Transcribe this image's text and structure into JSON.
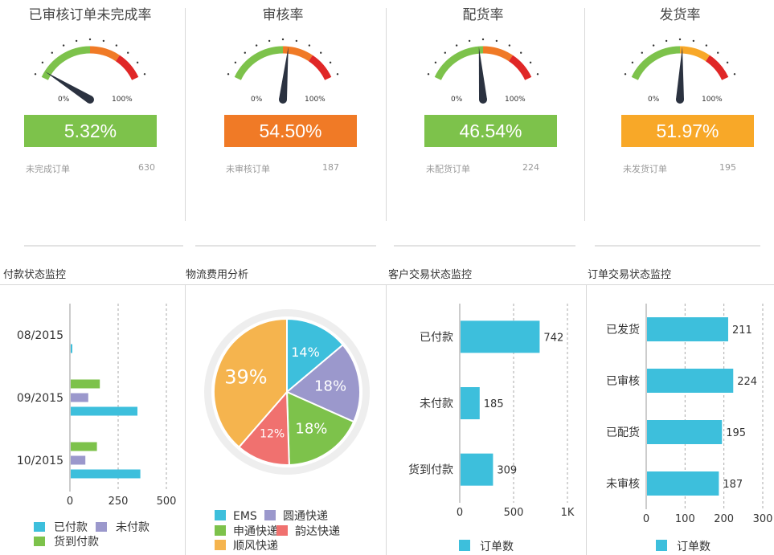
{
  "colors": {
    "green": "#7dc24b",
    "orange": "#f07a26",
    "yellow": "#f8a828",
    "red": "#e02727",
    "cyan": "#3dbfdc",
    "purple": "#9b98cc",
    "salmon": "#f0716f",
    "pie_yellow": "#f5b44e",
    "needle": "#2b3240"
  },
  "gauges": [
    {
      "title": "已审核订单未完成率",
      "value_text": "5.32%",
      "percent": 5.32,
      "box_color": "#7dc24b",
      "stat_label": "未完成订单",
      "stat_value": "630",
      "min_label": "0%",
      "max_label": "100%"
    },
    {
      "title": "审核率",
      "value_text": "54.50%",
      "percent": 54.5,
      "box_color": "#f07a26",
      "stat_label": "未审核订单",
      "stat_value": "187",
      "min_label": "0%",
      "max_label": "100%"
    },
    {
      "title": "配货率",
      "value_text": "46.54%",
      "percent": 46.54,
      "box_color": "#7dc24b",
      "stat_label": "未配货订单",
      "stat_value": "224",
      "min_label": "0%",
      "max_label": "100%"
    },
    {
      "title": "发货率",
      "value_text": "51.97%",
      "percent": 51.97,
      "box_color": "#f8a828",
      "stat_label": "未发货订单",
      "stat_value": "195",
      "min_label": "0%",
      "max_label": "100%"
    }
  ],
  "sections": {
    "payment": {
      "title": "付款状态监控"
    },
    "logistics": {
      "title": "物流费用分析"
    },
    "customer": {
      "title": "客户交易状态监控"
    },
    "order": {
      "title": "订单交易状态监控"
    }
  },
  "chart_data": [
    {
      "type": "bar",
      "orientation": "horizontal",
      "categories": [
        "08/2015",
        "09/2015",
        "10/2015"
      ],
      "series": [
        {
          "name": "已付款",
          "values": [
            5,
            350,
            365
          ],
          "color": "#3dbfdc"
        },
        {
          "name": "未付款",
          "values": [
            0,
            95,
            80
          ],
          "color": "#9b98cc"
        },
        {
          "name": "货到付款",
          "values": [
            0,
            155,
            140
          ],
          "color": "#7dc24b"
        }
      ],
      "xlim": [
        0,
        500
      ],
      "xticks": [
        "0",
        "250",
        "500"
      ],
      "legend": "bottom"
    },
    {
      "type": "pie",
      "slices": [
        {
          "name": "EMS",
          "value": 14,
          "label": "14%",
          "color": "#3dbfdc"
        },
        {
          "name": "圆通快递",
          "value": 18,
          "label": "18%",
          "color": "#9b98cc"
        },
        {
          "name": "申通快递",
          "value": 18,
          "label": "18%",
          "color": "#7dc24b"
        },
        {
          "name": "韵达快递",
          "value": 12,
          "label": "12%",
          "color": "#f0716f"
        },
        {
          "name": "顺风快递",
          "value": 39,
          "label": "39%",
          "color": "#f5b44e"
        }
      ],
      "legend": "bottom"
    },
    {
      "type": "bar",
      "orientation": "horizontal",
      "categories": [
        "已付款",
        "未付款",
        "货到付款"
      ],
      "series": [
        {
          "name": "订单数",
          "values": [
            742,
            185,
            309
          ],
          "color": "#3dbfdc"
        }
      ],
      "xlim": [
        0,
        1000
      ],
      "xticks": [
        "0",
        "500",
        "1K"
      ],
      "legend": "bottom"
    },
    {
      "type": "bar",
      "orientation": "horizontal",
      "categories": [
        "已发货",
        "已审核",
        "已配货",
        "未审核"
      ],
      "series": [
        {
          "name": "订单数",
          "values": [
            211,
            224,
            195,
            187
          ],
          "color": "#3dbfdc"
        }
      ],
      "xlim": [
        0,
        300
      ],
      "xticks": [
        "0",
        "100",
        "200",
        "300"
      ],
      "legend": "bottom"
    }
  ]
}
